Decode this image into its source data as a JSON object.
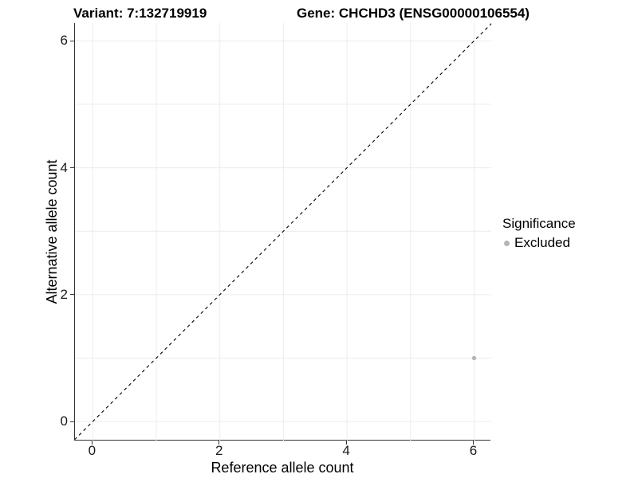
{
  "titles": {
    "left": "Variant: 7:132719919",
    "right": "Gene: CHCHD3 (ENSG00000106554)"
  },
  "chart_data": {
    "type": "scatter",
    "title": "Variant: 7:132719919 — Gene: CHCHD3 (ENSG00000106554)",
    "xlabel": "Reference allele count",
    "ylabel": "Alternative allele count",
    "xlim": [
      -0.28,
      6.27
    ],
    "ylim": [
      -0.3,
      6.28
    ],
    "xticks": [
      0,
      2,
      4,
      6
    ],
    "yticks": [
      0,
      2,
      4,
      6
    ],
    "grid_x": [
      0,
      1,
      2,
      3,
      4,
      5,
      6
    ],
    "grid_y": [
      0,
      1,
      2,
      3,
      4,
      5,
      6
    ],
    "grid_on": true,
    "identity_line": {
      "type": "abline",
      "slope": 1,
      "intercept": 0,
      "style": "dashed"
    },
    "series": [
      {
        "name": "Excluded",
        "color": "#b5b5b5",
        "points": [
          {
            "x": 6,
            "y": 1
          }
        ]
      }
    ],
    "legend": {
      "title": "Significance",
      "position": "right",
      "entries": [
        {
          "label": "Excluded",
          "color": "#b5b5b5"
        }
      ]
    }
  },
  "colors": {
    "axis": "#333333",
    "grid": "#ececec",
    "tick_label": "#1a1a1a",
    "diagonal": "#000000",
    "background": "#ffffff"
  }
}
